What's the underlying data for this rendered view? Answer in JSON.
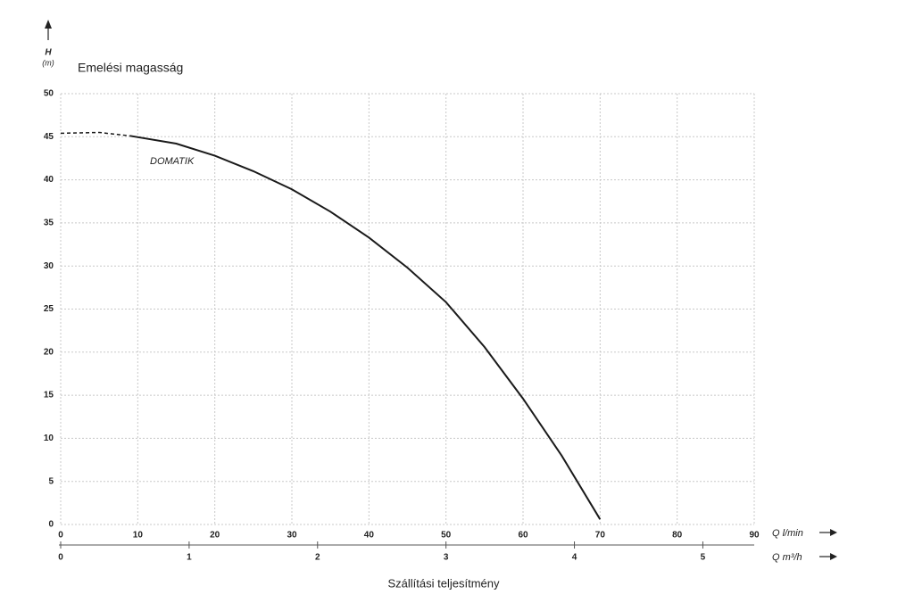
{
  "chart_data": {
    "type": "line",
    "title": "Emelési magasság",
    "y_symbol": "H",
    "y_unit": "(m)",
    "x_label": "Szállítási teljesítmény",
    "x_unit_label": "Q l/min",
    "x2_unit_label": "Q m³/h",
    "x": [
      0,
      5,
      9,
      15,
      20,
      25,
      30,
      35,
      40,
      45,
      50,
      55,
      60,
      65,
      70
    ],
    "series": [
      {
        "name": "DOMATIK",
        "color": "#1a1a1a",
        "values": [
          45.4,
          45.5,
          45.1,
          44.2,
          42.8,
          41,
          38.9,
          36.3,
          33.3,
          29.8,
          25.8,
          20.6,
          14.6,
          8,
          0.6
        ]
      }
    ],
    "dashed_below_x": 9,
    "xlim": [
      0,
      90
    ],
    "xticks": [
      0,
      10,
      20,
      30,
      40,
      50,
      60,
      70,
      80,
      90
    ],
    "x2lim": [
      0,
      5.4
    ],
    "x2ticks": [
      0,
      1,
      2,
      3,
      4,
      5
    ],
    "ylim": [
      0,
      50
    ],
    "yticks": [
      0,
      5,
      10,
      15,
      20,
      25,
      30,
      35,
      40,
      45,
      50
    ],
    "grid": true
  }
}
